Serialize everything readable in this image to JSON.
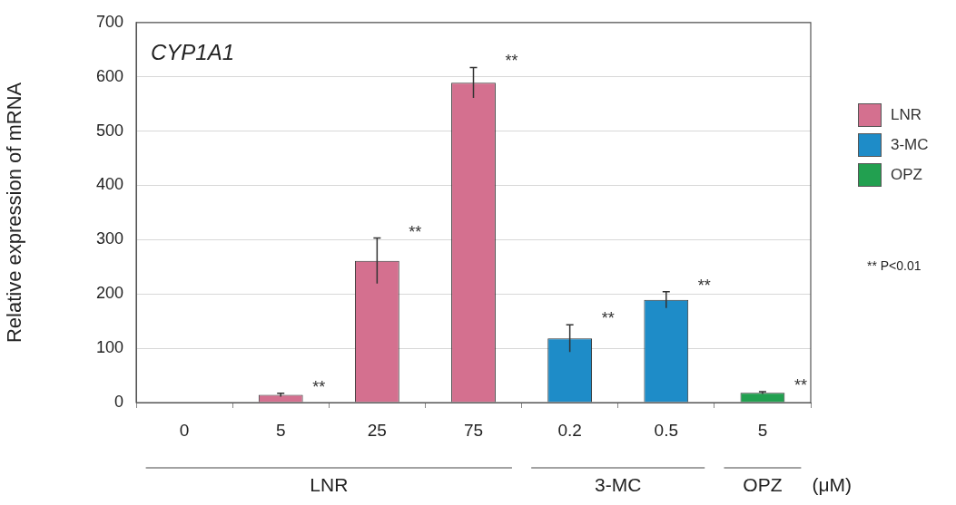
{
  "chart_data": {
    "type": "bar",
    "title": "CYP1A1",
    "ylabel": "Relative expression of mRNA",
    "categories": [
      "0",
      "5",
      "25",
      "75",
      "0.2",
      "0.5",
      "5"
    ],
    "series": [
      {
        "name": "LNR",
        "color": "#d4708f",
        "values": [
          1,
          14,
          261,
          589,
          null,
          null,
          null
        ],
        "errors": [
          null,
          3,
          42,
          28,
          null,
          null,
          null
        ]
      },
      {
        "name": "3-MC",
        "color": "#1e8cc8",
        "values": [
          null,
          null,
          null,
          null,
          118,
          189,
          null
        ],
        "errors": [
          null,
          null,
          null,
          null,
          25,
          15,
          null
        ]
      },
      {
        "name": "OPZ",
        "color": "#22a050",
        "values": [
          null,
          null,
          null,
          null,
          null,
          null,
          18
        ],
        "errors": [
          null,
          null,
          null,
          null,
          null,
          null,
          2
        ]
      }
    ],
    "ylim": [
      0,
      700
    ],
    "yticks": [
      0,
      100,
      200,
      300,
      400,
      500,
      600,
      700
    ],
    "grid": "y",
    "legend": "right",
    "annotations": [
      "**",
      "**",
      "**",
      "**",
      "**",
      "**",
      "LNR",
      "3-MC",
      "OPZ",
      "(μM)",
      "** P<0.01"
    ]
  }
}
